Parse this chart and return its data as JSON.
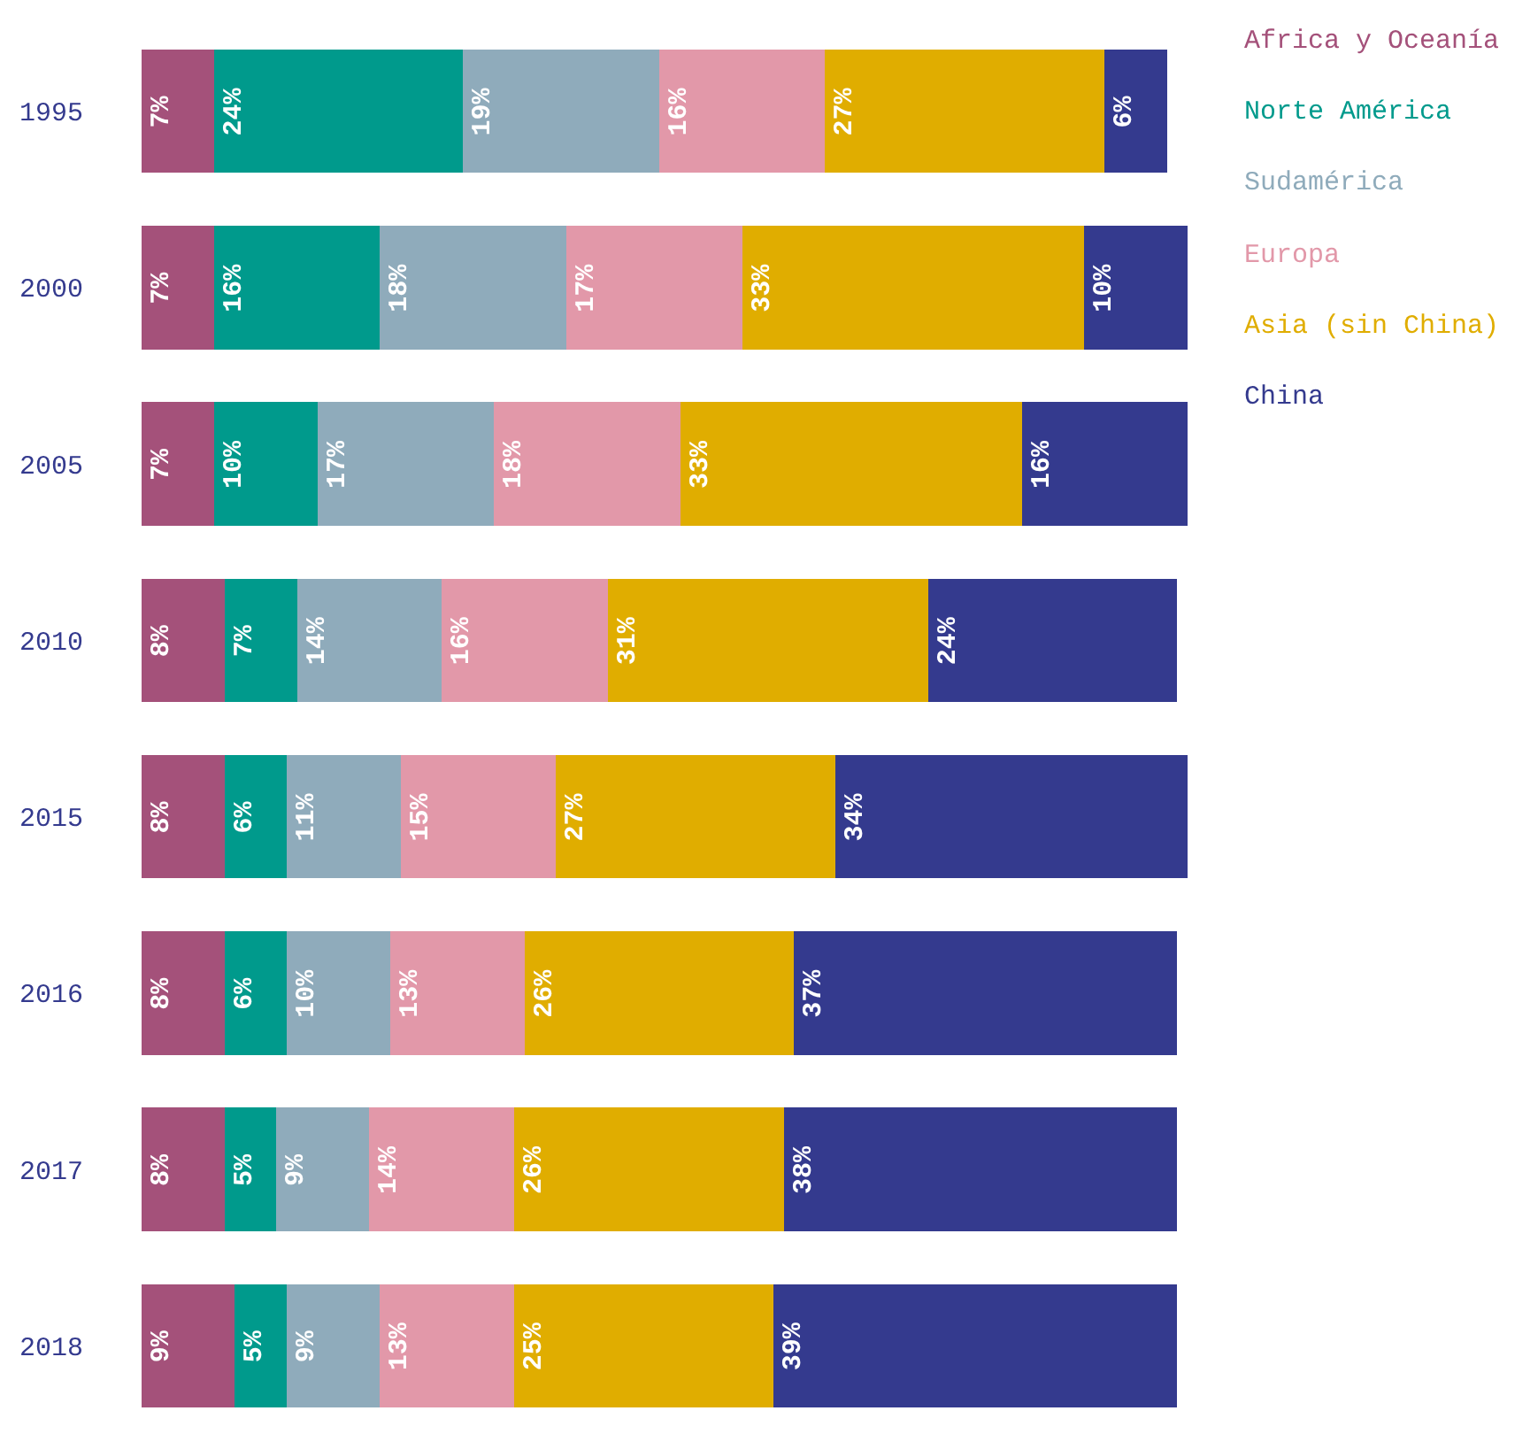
{
  "chart_data": {
    "type": "bar",
    "orientation": "horizontal",
    "stacked": true,
    "tick_labels": "y",
    "legend": "top right",
    "categories": [
      "1995",
      "2000",
      "2005",
      "2010",
      "2015",
      "2016",
      "2017",
      "2018"
    ],
    "series": [
      {
        "name": "Africa y Oceanía",
        "color": "#a4517a",
        "values": [
          7,
          7,
          7,
          8,
          8,
          8,
          8,
          9
        ],
        "value_labels": [
          "7%",
          "7%",
          "7%",
          "8%",
          "8%",
          "8%",
          "8%",
          "9%"
        ]
      },
      {
        "name": "Norte América",
        "color": "#009a8c",
        "values": [
          24,
          16,
          10,
          7,
          6,
          6,
          5,
          5
        ],
        "value_labels": [
          "24%",
          "16%",
          "10%",
          "7%",
          "6%",
          "6%",
          "5%",
          "5%"
        ]
      },
      {
        "name": "Sudamérica",
        "color": "#8fabbb",
        "values": [
          19,
          18,
          17,
          14,
          11,
          10,
          9,
          9
        ],
        "value_labels": [
          "19%",
          "18%",
          "17%",
          "14%",
          "11%",
          "10%",
          "9%",
          "9%"
        ]
      },
      {
        "name": "Europa",
        "color": "#e298a9",
        "values": [
          16,
          17,
          18,
          16,
          15,
          13,
          14,
          13
        ],
        "value_labels": [
          "16%",
          "17%",
          "18%",
          "16%",
          "15%",
          "13%",
          "14%",
          "13%"
        ]
      },
      {
        "name": "Asia (sin China)",
        "color": "#e0ad00",
        "values": [
          27,
          33,
          33,
          31,
          27,
          26,
          26,
          25
        ],
        "value_labels": [
          "27%",
          "33%",
          "33%",
          "31%",
          "27%",
          "26%",
          "26%",
          "25%"
        ]
      },
      {
        "name": "China",
        "color": "#343a8e",
        "values": [
          6,
          10,
          16,
          24,
          34,
          37,
          38,
          39
        ],
        "value_labels": [
          "6%",
          "10%",
          "16%",
          "24%",
          "34%",
          "37%",
          "38%",
          "39%"
        ]
      }
    ]
  }
}
